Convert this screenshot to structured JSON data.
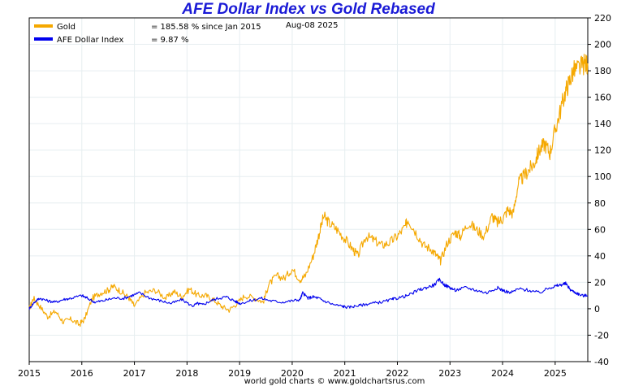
{
  "chart_data": {
    "type": "line",
    "title": "AFE Dollar Index vs Gold Rebased",
    "date_label": "Aug-08  2025",
    "credit": "world gold charts © www.goldchartsrus.com",
    "xlim": [
      2015.0,
      2025.62
    ],
    "ylim": [
      -40,
      220
    ],
    "x_ticks": [
      2015,
      2016,
      2017,
      2018,
      2019,
      2020,
      2021,
      2022,
      2023,
      2024,
      2025
    ],
    "x_tick_labels": [
      "2015",
      "2016",
      "2017",
      "2018",
      "2019",
      "2020",
      "2021",
      "2022",
      "2023",
      "2024",
      "2025"
    ],
    "y_ticks": [
      -40,
      -20,
      0,
      20,
      40,
      60,
      80,
      100,
      120,
      140,
      160,
      180,
      200,
      220
    ],
    "y_tick_labels": [
      "-40",
      "-20",
      "0",
      "20",
      "40",
      "60",
      "80",
      "100",
      "120",
      "140",
      "160",
      "180",
      "200",
      "220"
    ],
    "grid": true,
    "legend_position": "top-left",
    "series": [
      {
        "name": "Gold",
        "legend_value": "= 185.58 % since Jan 2015",
        "color": "#f5a800",
        "x": [
          2015.0,
          2015.08,
          2015.2,
          2015.35,
          2015.5,
          2015.65,
          2015.8,
          2015.95,
          2016.05,
          2016.2,
          2016.35,
          2016.5,
          2016.6,
          2016.75,
          2016.9,
          2017.0,
          2017.2,
          2017.4,
          2017.6,
          2017.75,
          2017.9,
          2018.05,
          2018.2,
          2018.35,
          2018.5,
          2018.65,
          2018.8,
          2018.95,
          2019.1,
          2019.3,
          2019.45,
          2019.55,
          2019.7,
          2019.85,
          2020.0,
          2020.15,
          2020.25,
          2020.4,
          2020.5,
          2020.6,
          2020.7,
          2020.85,
          2021.0,
          2021.15,
          2021.25,
          2021.4,
          2021.55,
          2021.7,
          2021.85,
          2022.0,
          2022.15,
          2022.2,
          2022.35,
          2022.5,
          2022.65,
          2022.75,
          2022.82,
          2022.95,
          2023.1,
          2023.2,
          2023.35,
          2023.5,
          2023.65,
          2023.8,
          2023.9,
          2024.0,
          2024.1,
          2024.2,
          2024.3,
          2024.4,
          2024.5,
          2024.6,
          2024.7,
          2024.8,
          2024.9,
          2025.0,
          2025.1,
          2025.2,
          2025.27,
          2025.35,
          2025.45,
          2025.55,
          2025.62
        ],
        "y": [
          0,
          8,
          2,
          -6,
          -2,
          -10,
          -8,
          -12,
          -8,
          8,
          12,
          14,
          17,
          13,
          8,
          2,
          12,
          14,
          8,
          13,
          9,
          15,
          10,
          10,
          7,
          2,
          -1,
          4,
          10,
          8,
          5,
          18,
          25,
          23,
          30,
          22,
          25,
          40,
          55,
          70,
          65,
          60,
          53,
          45,
          40,
          55,
          52,
          48,
          50,
          55,
          62,
          68,
          58,
          48,
          45,
          40,
          36,
          50,
          58,
          55,
          65,
          60,
          55,
          70,
          65,
          68,
          75,
          72,
          95,
          100,
          105,
          110,
          120,
          125,
          118,
          135,
          150,
          165,
          172,
          180,
          182,
          185,
          185.58
        ]
      },
      {
        "name": "AFE Dollar Index",
        "legend_value": "= 9.87 %",
        "color": "#0000ee",
        "x": [
          2015.0,
          2015.1,
          2015.2,
          2015.35,
          2015.5,
          2015.65,
          2015.8,
          2016.0,
          2016.1,
          2016.25,
          2016.4,
          2016.6,
          2016.8,
          2016.95,
          2017.1,
          2017.3,
          2017.5,
          2017.7,
          2017.9,
          2018.1,
          2018.2,
          2018.3,
          2018.45,
          2018.6,
          2018.75,
          2018.9,
          2019.0,
          2019.2,
          2019.4,
          2019.6,
          2019.8,
          2020.0,
          2020.15,
          2020.2,
          2020.3,
          2020.4,
          2020.5,
          2020.6,
          2020.8,
          2020.95,
          2021.05,
          2021.2,
          2021.35,
          2021.5,
          2021.7,
          2021.9,
          2022.0,
          2022.2,
          2022.4,
          2022.55,
          2022.7,
          2022.8,
          2022.9,
          2023.0,
          2023.1,
          2023.3,
          2023.5,
          2023.7,
          2023.9,
          2024.0,
          2024.15,
          2024.3,
          2024.5,
          2024.7,
          2024.9,
          2025.0,
          2025.1,
          2025.2,
          2025.3,
          2025.4,
          2025.5,
          2025.62
        ],
        "y": [
          0,
          5,
          8,
          6,
          5,
          7,
          8,
          10,
          8,
          5,
          6,
          8,
          8,
          10,
          12,
          8,
          6,
          4,
          7,
          2,
          4,
          3,
          6,
          8,
          9,
          6,
          4,
          6,
          8,
          6,
          5,
          6,
          7,
          12,
          8,
          9,
          8,
          6,
          3,
          2,
          1,
          2,
          3,
          4,
          5,
          7,
          8,
          10,
          14,
          16,
          18,
          22,
          18,
          16,
          14,
          16,
          14,
          12,
          16,
          14,
          12,
          15,
          14,
          12,
          16,
          17,
          18,
          19,
          14,
          12,
          10,
          9.87
        ]
      }
    ]
  }
}
